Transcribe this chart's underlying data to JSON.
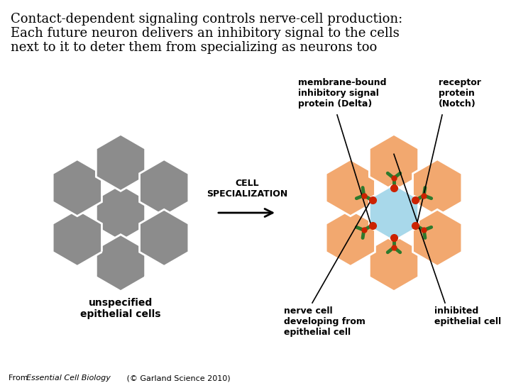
{
  "title_line1": "Contact-dependent signaling controls nerve-cell production:",
  "title_line2": "Each future neuron delivers an inhibitory signal to the cells",
  "title_line3": "next to it to deter them from specializing as neurons too",
  "gray_hex_color": "#8C8C8C",
  "orange_hex_color": "#F2A86F",
  "blue_hex_color": "#A8D8EA",
  "green_color": "#2D7A2D",
  "red_dot_color": "#CC2200",
  "bg_color": "#FFFFFF",
  "left_label": "unspecified\nepithelial cells",
  "label_membrane": "membrane-bound\ninhibitory signal\nprotein (Delta)",
  "label_receptor": "receptor\nprotein\n(Notch)",
  "label_nerve": "nerve cell\ndeveloping from\nepithelial cell",
  "label_inhibited": "inhibited\nepithelial cell",
  "title_fontsize": 13,
  "label_fontsize": 9,
  "footer_normal": "From  ",
  "footer_italic": "Essential Cell Biology",
  "footer_end": " (© Garland Science 2010)"
}
